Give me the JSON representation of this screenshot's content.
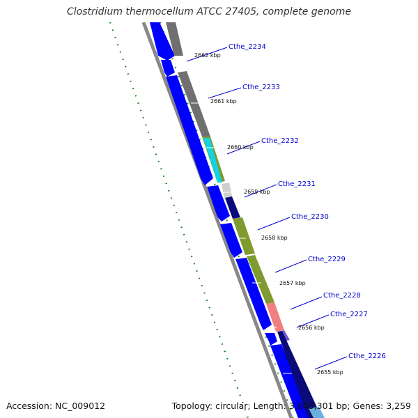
{
  "title": "Clostridium thermocellum ATCC 27405, complete genome",
  "footer": {
    "accession": "Accession: NC_009012",
    "summary": "Topology: circular; Length: 3,843,301 bp; Genes: 3,259"
  },
  "colors": {
    "forward_cds": "#0000ff",
    "backbone": "#888888",
    "gc_skew": "#008000",
    "gene_label": "#0000cc",
    "tick_label": "#111111",
    "track_gray": "#707070",
    "track_olive": "#7f9a2e",
    "track_navy": "#0a0a78",
    "track_cyan": "#14d2e6",
    "track_pink": "#f08080",
    "track_purple": "#6a5acd",
    "track_light_gray": "#cfcfcf",
    "track_light_blue": "#6ab0de"
  },
  "gene_labels": [
    {
      "text": "Cthe_2234"
    },
    {
      "text": "Cthe_2233"
    },
    {
      "text": "Cthe_2232"
    },
    {
      "text": "Cthe_2231"
    },
    {
      "text": "Cthe_2230"
    },
    {
      "text": "Cthe_2229"
    },
    {
      "text": "Cthe_2228"
    },
    {
      "text": "Cthe_2227"
    },
    {
      "text": "Cthe_2226"
    }
  ],
  "tick_labels": [
    {
      "text": "2663 kbp"
    },
    {
      "text": "2662 kbp"
    },
    {
      "text": "2661 kbp"
    },
    {
      "text": "2660 kbp"
    },
    {
      "text": "2659 kbp"
    },
    {
      "text": "2658 kbp"
    },
    {
      "text": "2657 kbp"
    },
    {
      "text": "2656 kbp"
    },
    {
      "text": "2655 kbp"
    }
  ]
}
